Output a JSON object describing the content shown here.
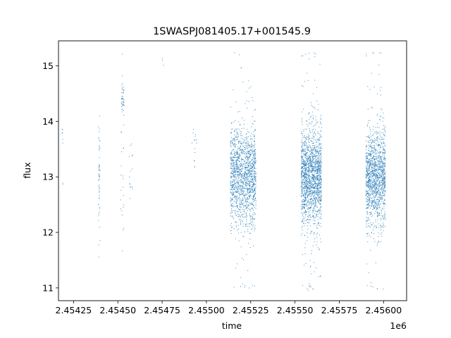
{
  "chart_data": {
    "type": "scatter",
    "title": "1SWASPJ081405.17+001545.9",
    "xlabel": "time",
    "ylabel": "flux",
    "x_offset_label": "1e6",
    "xlim": [
      2.454165,
      2.45613
    ],
    "ylim": [
      10.77,
      15.45
    ],
    "x_ticks": [
      2.45425,
      2.4545,
      2.45475,
      2.455,
      2.45525,
      2.4555,
      2.45575,
      2.456
    ],
    "x_tick_labels": [
      "2.45425",
      "2.45450",
      "2.45475",
      "2.45500",
      "2.45525",
      "2.45550",
      "2.45575",
      "2.45600"
    ],
    "y_ticks": [
      11,
      12,
      13,
      14,
      15
    ],
    "y_tick_labels": [
      "11",
      "12",
      "13",
      "14",
      "15"
    ],
    "grid": false,
    "series": [
      {
        "color": "#1f77b4",
        "marker_size": 1,
        "clusters": [
          {
            "x_range": [
              2.454185,
              2.45419
            ],
            "y_center": 13.8,
            "y_spread": 0.12,
            "count": 6
          },
          {
            "x_range": [
              2.454188,
              2.454192
            ],
            "y_center": 12.85,
            "y_spread": 0.03,
            "count": 2
          },
          {
            "x_range": [
              2.45439,
              2.4544
            ],
            "y_center": 13.1,
            "y_spread": 0.55,
            "count": 55
          },
          {
            "x_range": [
              2.45452,
              2.454535
            ],
            "y_center": 14.4,
            "y_spread": 0.13,
            "count": 40
          },
          {
            "x_range": [
              2.454515,
              2.454535
            ],
            "y_center": 13.0,
            "y_spread": 0.55,
            "count": 25
          },
          {
            "x_range": [
              2.454565,
              2.454585
            ],
            "y_center": 13.2,
            "y_spread": 0.35,
            "count": 15
          },
          {
            "x_range": [
              2.45475,
              2.45476
            ],
            "y_center": 15.1,
            "y_spread": 0.08,
            "count": 3
          },
          {
            "x_range": [
              2.454915,
              2.454945
            ],
            "y_center": 13.55,
            "y_spread": 0.3,
            "count": 15
          },
          {
            "x_range": [
              2.455135,
              2.45528
            ],
            "y_center": 13.0,
            "y_spread": 0.42,
            "count": 1500
          },
          {
            "x_range": [
              2.455535,
              2.45565
            ],
            "y_center": 13.0,
            "y_spread": 0.42,
            "count": 1700
          },
          {
            "x_range": [
              2.4559,
              2.45601
            ],
            "y_center": 13.0,
            "y_spread": 0.42,
            "count": 1400
          }
        ]
      }
    ]
  }
}
